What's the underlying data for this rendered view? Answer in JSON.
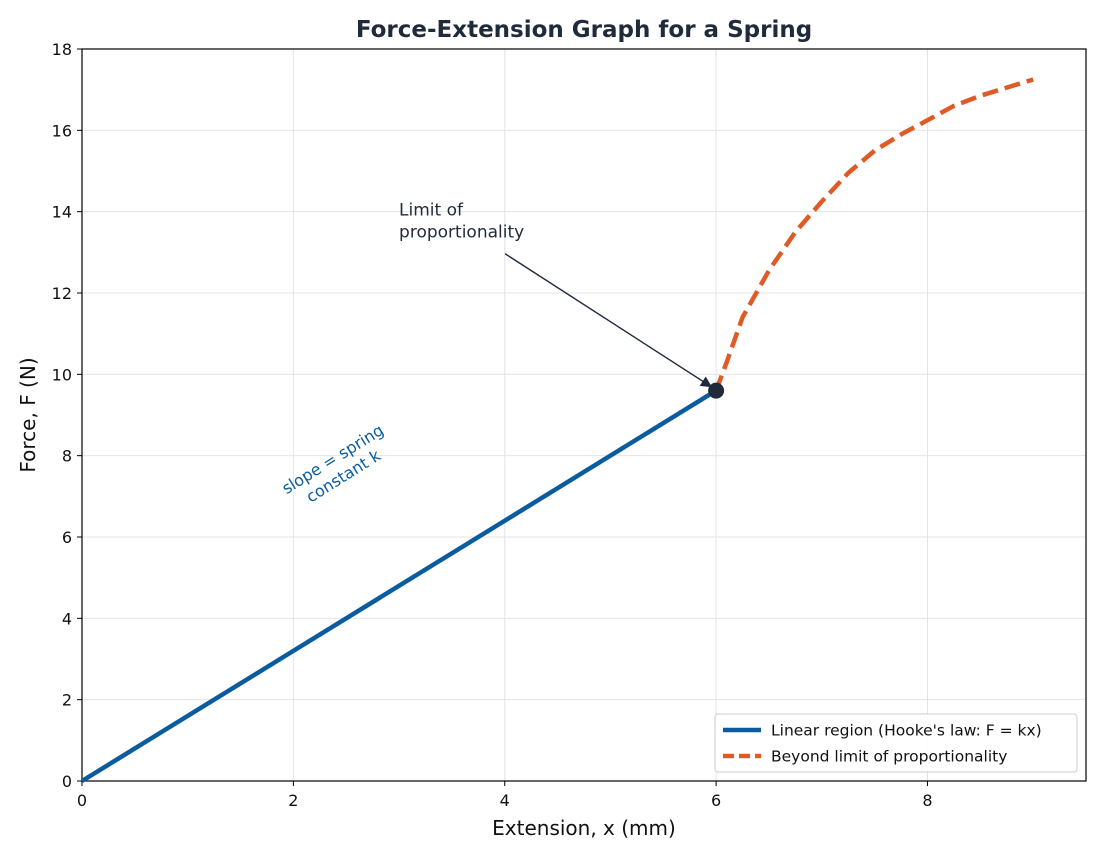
{
  "chart_data": {
    "type": "line",
    "title": "Force-Extension Graph for a Spring",
    "xlabel": "Extension, x (mm)",
    "ylabel": "Force, F (N)",
    "xlim": [
      0,
      9.5
    ],
    "ylim": [
      0,
      18
    ],
    "xticks": [
      0,
      2,
      4,
      6,
      8
    ],
    "yticks": [
      0,
      2,
      4,
      6,
      8,
      10,
      12,
      14,
      16,
      18
    ],
    "grid": true,
    "legend_position": "bottom-right",
    "series": [
      {
        "name": "Linear region (Hooke's law: F = kx)",
        "color": "#0a5c9e",
        "style": "solid",
        "x": [
          0,
          6
        ],
        "y": [
          0,
          9.6
        ]
      },
      {
        "name": "Beyond limit of proportionality",
        "color": "#e05a25",
        "style": "dashed",
        "x": [
          6.0,
          6.1,
          6.25,
          6.5,
          6.75,
          7.0,
          7.25,
          7.5,
          7.75,
          8.0,
          8.25,
          8.5,
          8.75,
          9.0
        ],
        "y": [
          9.6,
          10.3,
          11.4,
          12.55,
          13.5,
          14.25,
          14.95,
          15.5,
          15.9,
          16.25,
          16.6,
          16.85,
          17.05,
          17.25
        ]
      }
    ],
    "points": [
      {
        "label": "limit-of-proportionality-point",
        "x": 6,
        "y": 9.6,
        "color": "#1f2a3a"
      }
    ],
    "annotations": [
      {
        "text_lines": [
          "Limit of",
          "proportionality"
        ],
        "text_x": 3.0,
        "text_y": 13.9,
        "target_x": 6,
        "target_y": 9.6
      },
      {
        "text_lines": [
          "slope = spring",
          "constant k"
        ],
        "x": 2.4,
        "y": 7.8,
        "color": "#0a5c9e",
        "rotation": -32
      }
    ]
  }
}
